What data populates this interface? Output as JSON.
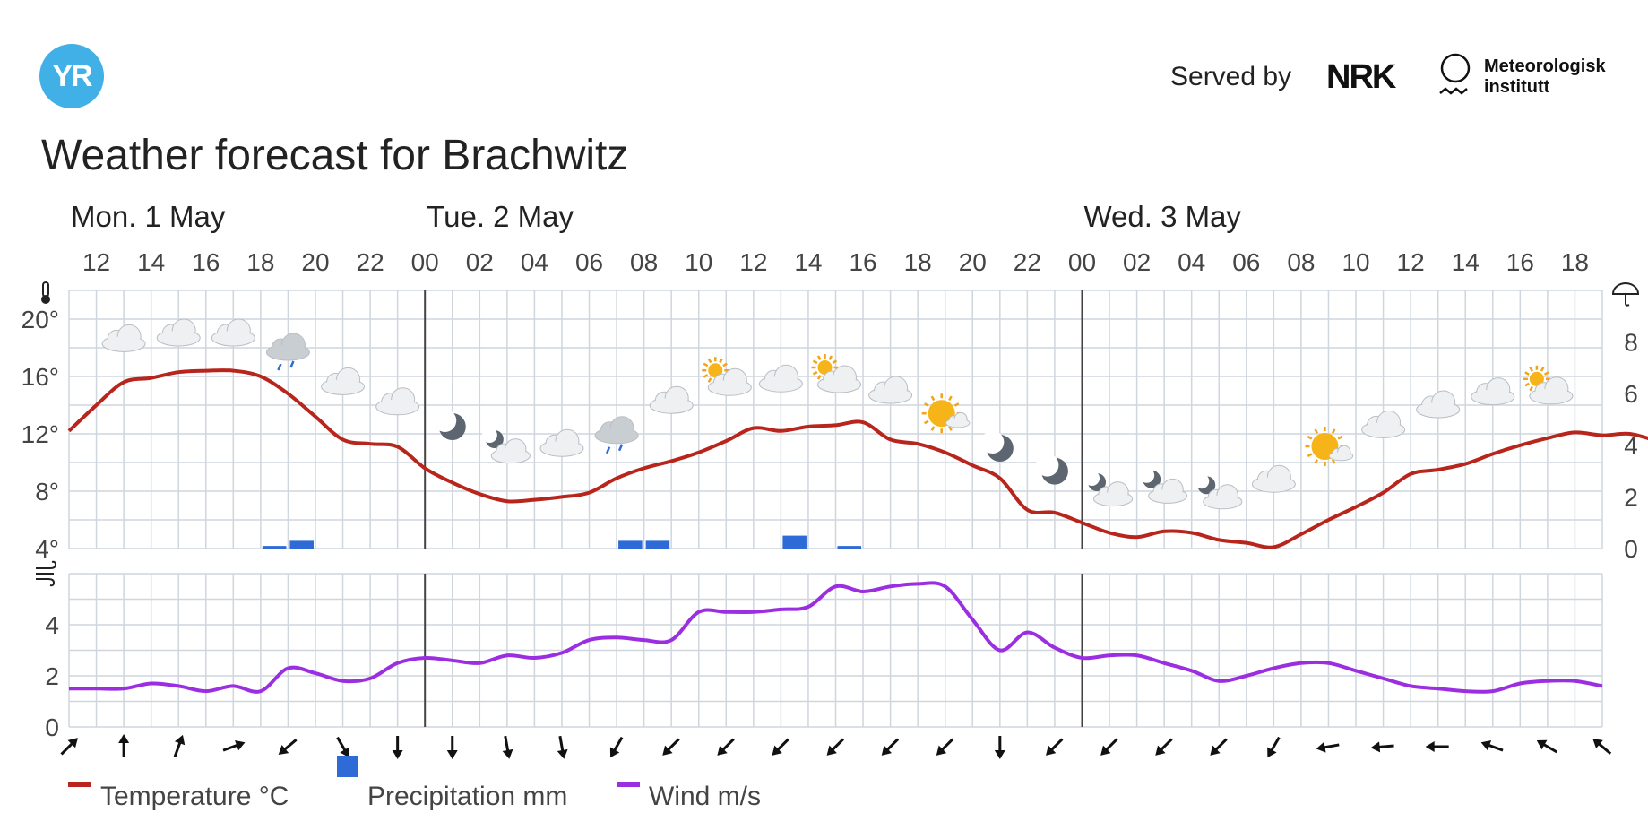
{
  "header": {
    "logo_text": "YR",
    "served_by": "Served by",
    "nrk_logo": "NRK",
    "met_line1": "Meteorologisk",
    "met_line2": "institutt",
    "title": "Weather forecast for Brachwitz"
  },
  "colors": {
    "temperature": "#b8251c",
    "precipitation": "#2f6bd6",
    "wind": "#9b2ee0",
    "grid": "#cfd6dd",
    "logo": "#41b0e6"
  },
  "legend": {
    "temperature": "Temperature °C",
    "precipitation": "Precipitation mm",
    "wind": "Wind m/s"
  },
  "chart_data": {
    "type": "line",
    "days": [
      {
        "label": "Mon. 1 May",
        "hour": 11
      },
      {
        "label": "Tue. 2 May",
        "hour": 24
      },
      {
        "label": "Wed. 3 May",
        "hour": 48
      }
    ],
    "hour_ticks": [
      "12",
      "14",
      "16",
      "18",
      "20",
      "22",
      "00",
      "02",
      "04",
      "06",
      "08",
      "10",
      "12",
      "14",
      "16",
      "18",
      "20",
      "22",
      "00",
      "02",
      "04",
      "06",
      "08",
      "10",
      "12",
      "14",
      "16",
      "18"
    ],
    "temperature": {
      "unit": "°C",
      "ylim": [
        4,
        22
      ],
      "yticks": [
        "4°",
        "8°",
        "12°",
        "16°",
        "20°"
      ],
      "values": [
        12.2,
        14.0,
        15.6,
        15.9,
        16.3,
        16.4,
        16.4,
        16.0,
        14.8,
        13.2,
        11.6,
        11.3,
        11.1,
        9.6,
        8.6,
        7.8,
        7.3,
        7.4,
        7.6,
        7.9,
        8.9,
        9.6,
        10.1,
        10.7,
        11.5,
        12.4,
        12.2,
        12.5,
        12.6,
        12.8,
        11.6,
        11.3,
        10.7,
        9.8,
        8.9,
        6.7,
        6.5,
        5.8,
        5.1,
        4.8,
        5.2,
        5.1,
        4.6,
        4.4,
        4.1,
        5.0,
        6.0,
        6.9,
        7.9,
        9.2,
        9.5,
        9.9,
        10.6,
        11.2,
        11.7,
        12.1,
        11.9,
        12.0,
        11.5
      ]
    },
    "precipitation": {
      "unit": "mm",
      "ylim": [
        0,
        10
      ],
      "yticks": [
        "0",
        "2",
        "4",
        "6",
        "8"
      ],
      "values": [
        0,
        0,
        0,
        0,
        0,
        0,
        0,
        0.1,
        0.3,
        0,
        0,
        0,
        0,
        0,
        0,
        0,
        0,
        0,
        0,
        0,
        0.3,
        0.3,
        0,
        0,
        0,
        0,
        0.5,
        0,
        0.1,
        0,
        0,
        0,
        0,
        0,
        0,
        0,
        0,
        0,
        0,
        0,
        0,
        0,
        0,
        0,
        0,
        0,
        0,
        0,
        0,
        0,
        0,
        0,
        0,
        0,
        0,
        0,
        0,
        0,
        0
      ]
    },
    "wind": {
      "unit": "m/s",
      "ylim": [
        0,
        6
      ],
      "yticks": [
        "0",
        "2",
        "4"
      ],
      "values": [
        1.5,
        1.5,
        1.5,
        1.7,
        1.6,
        1.4,
        1.6,
        1.4,
        2.3,
        2.1,
        1.8,
        1.9,
        2.5,
        2.7,
        2.6,
        2.5,
        2.8,
        2.7,
        2.9,
        3.4,
        3.5,
        3.4,
        3.4,
        4.5,
        4.5,
        4.5,
        4.6,
        4.7,
        5.5,
        5.3,
        5.5,
        5.6,
        5.5,
        4.2,
        3.0,
        3.7,
        3.1,
        2.7,
        2.8,
        2.8,
        2.5,
        2.2,
        1.8,
        2.0,
        2.3,
        2.5,
        2.5,
        2.2,
        1.9,
        1.6,
        1.5,
        1.4,
        1.4,
        1.7,
        1.8,
        1.8,
        1.6
      ],
      "directions": [
        315,
        270,
        290,
        340,
        140,
        60,
        90,
        90,
        80,
        80,
        120,
        135,
        135,
        135,
        135,
        135,
        135,
        90,
        135,
        135,
        135,
        135,
        120,
        170,
        175,
        180,
        200,
        210,
        220
      ]
    },
    "symbols": [
      {
        "hour": 13,
        "temp": 18.6,
        "icon": "cloudy-icon"
      },
      {
        "hour": 15,
        "temp": 19.0,
        "icon": "cloudy-icon"
      },
      {
        "hour": 17,
        "temp": 19.0,
        "icon": "cloudy-icon"
      },
      {
        "hour": 19,
        "temp": 18.0,
        "icon": "light-rain-icon"
      },
      {
        "hour": 21,
        "temp": 15.6,
        "icon": "cloudy-icon"
      },
      {
        "hour": 23,
        "temp": 14.2,
        "icon": "cloudy-icon"
      },
      {
        "hour": 25,
        "temp": 12.5,
        "icon": "moon-icon"
      },
      {
        "hour": 27,
        "temp": 11.0,
        "icon": "partly-cloudy-night-icon"
      },
      {
        "hour": 29,
        "temp": 11.3,
        "icon": "cloudy-icon"
      },
      {
        "hour": 31,
        "temp": 12.2,
        "icon": "light-rain-icon"
      },
      {
        "hour": 33,
        "temp": 14.3,
        "icon": "cloudy-icon"
      },
      {
        "hour": 35,
        "temp": 15.8,
        "icon": "partly-cloudy-day-icon"
      },
      {
        "hour": 37,
        "temp": 15.8,
        "icon": "cloudy-icon"
      },
      {
        "hour": 39,
        "temp": 16.0,
        "icon": "partly-cloudy-day-icon"
      },
      {
        "hour": 41,
        "temp": 15.0,
        "icon": "cloudy-icon"
      },
      {
        "hour": 43,
        "temp": 13.3,
        "icon": "fair-day-icon"
      },
      {
        "hour": 45,
        "temp": 11.0,
        "icon": "moon-icon"
      },
      {
        "hour": 47,
        "temp": 9.4,
        "icon": "moon-icon"
      },
      {
        "hour": 49,
        "temp": 8.0,
        "icon": "partly-cloudy-night-icon"
      },
      {
        "hour": 51,
        "temp": 8.2,
        "icon": "partly-cloudy-night-icon"
      },
      {
        "hour": 53,
        "temp": 7.8,
        "icon": "partly-cloudy-night-icon"
      },
      {
        "hour": 55,
        "temp": 8.8,
        "icon": "cloudy-icon"
      },
      {
        "hour": 57,
        "temp": 11.0,
        "icon": "fair-day-icon"
      },
      {
        "hour": 59,
        "temp": 12.6,
        "icon": "cloudy-icon"
      },
      {
        "hour": 61,
        "temp": 14.0,
        "icon": "cloudy-icon"
      },
      {
        "hour": 63,
        "temp": 14.9,
        "icon": "cloudy-icon"
      },
      {
        "hour": 65,
        "temp": 15.2,
        "icon": "partly-cloudy-day-icon"
      }
    ]
  }
}
